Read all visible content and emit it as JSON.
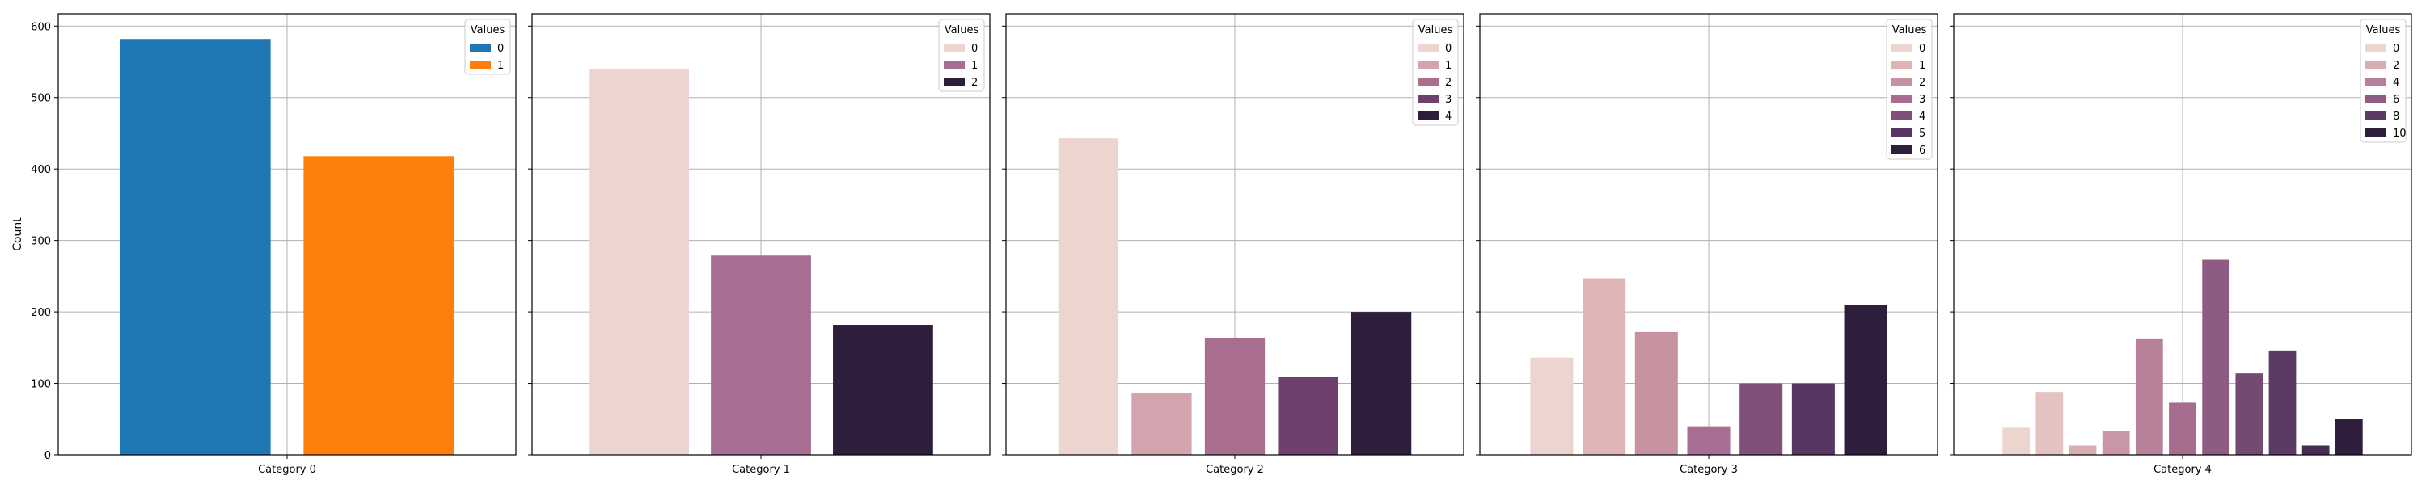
{
  "y_axis": {
    "label": "Count",
    "range": [
      0,
      600
    ],
    "ticks": [
      0,
      100,
      200,
      300,
      400,
      500,
      600
    ]
  },
  "legend_title": "Values",
  "grid": true,
  "legend_position": "top-right",
  "chart_data": [
    {
      "type": "bar",
      "category": "Category 0",
      "legend": {
        "title": "Values",
        "labels": [
          "0",
          "1"
        ]
      },
      "colors": [
        "#1f77b4",
        "#ff7f0e"
      ],
      "values": [
        582,
        418
      ]
    },
    {
      "type": "bar",
      "category": "Category 1",
      "legend": {
        "title": "Values",
        "labels": [
          "0",
          "1",
          "2"
        ]
      },
      "colors": [
        "#ecd4cf",
        "#a86e92",
        "#2e1e3b"
      ],
      "values": [
        540,
        279,
        182
      ]
    },
    {
      "type": "bar",
      "category": "Category 2",
      "legend": {
        "title": "Values",
        "labels": [
          "0",
          "1",
          "2",
          "3",
          "4"
        ]
      },
      "colors": [
        "#ecd4cf",
        "#d3a4ad",
        "#a96e8f",
        "#6d416b",
        "#2e1e3b"
      ],
      "values": [
        443,
        87,
        164,
        109,
        200
      ]
    },
    {
      "type": "bar",
      "category": "Category 3",
      "legend": {
        "title": "Values",
        "labels": [
          "0",
          "1",
          "2",
          "3",
          "4",
          "5",
          "6"
        ]
      },
      "colors": [
        "#ecd4cf",
        "#deb4b6",
        "#c7929f",
        "#a86e92",
        "#80507b",
        "#573663",
        "#2e1e3b"
      ],
      "values": [
        136,
        247,
        172,
        40,
        100,
        100,
        210
      ]
    },
    {
      "type": "bar",
      "category": "Category 4",
      "legend": {
        "title": "Values",
        "labels": [
          "0",
          "2",
          "4",
          "6",
          "8",
          "10"
        ]
      },
      "series_values": [
        "0",
        "1",
        "2",
        "3",
        "4",
        "5",
        "6",
        "7",
        "8",
        "9",
        "10"
      ],
      "colors": [
        "#ecd4cf",
        "#e3c2c0",
        "#d7aeb2",
        "#c996a5",
        "#b8819a",
        "#a66c8e",
        "#8e5b82",
        "#744a73",
        "#5b3b63",
        "#432d50",
        "#2e1e3b"
      ],
      "legend_color_index": [
        0,
        2,
        4,
        6,
        8,
        10
      ],
      "values": [
        38,
        88,
        13,
        33,
        163,
        73,
        273,
        114,
        146,
        13,
        50
      ]
    }
  ]
}
